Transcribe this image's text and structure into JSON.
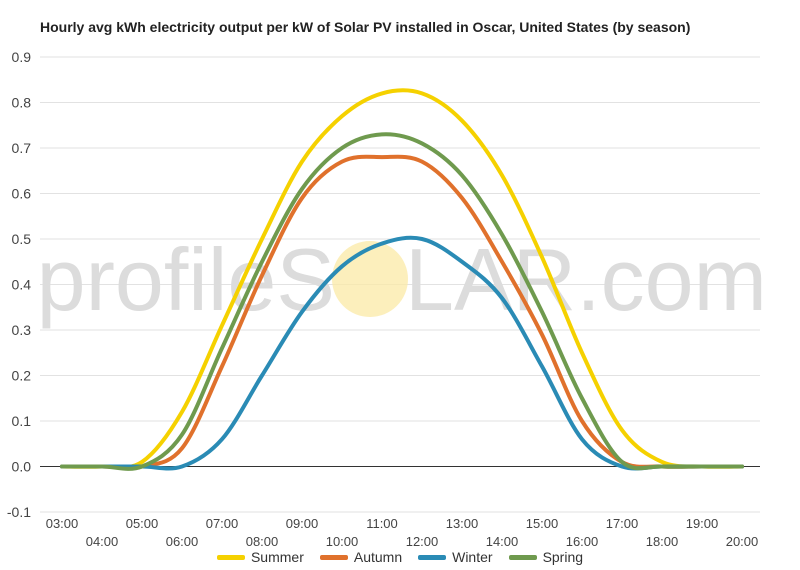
{
  "chart_data": {
    "type": "line",
    "title": "Hourly avg kWh electricity output per kW of Solar PV installed in Oscar, United States (by season)",
    "watermark": {
      "left": "profileS",
      "right": "LAR.com"
    },
    "xlabel": "",
    "ylabel": "",
    "ylim": [
      -0.1,
      0.9
    ],
    "yticks": [
      "-0.1",
      "0.0",
      "0.1",
      "0.2",
      "0.3",
      "0.4",
      "0.5",
      "0.6",
      "0.7",
      "0.8",
      "0.9"
    ],
    "categories": [
      "03:00",
      "04:00",
      "05:00",
      "06:00",
      "07:00",
      "08:00",
      "09:00",
      "10:00",
      "11:00",
      "12:00",
      "13:00",
      "14:00",
      "15:00",
      "16:00",
      "17:00",
      "18:00",
      "19:00",
      "20:00"
    ],
    "grid": true,
    "legend_position": "bottom",
    "series": [
      {
        "name": "Summer",
        "color": "#f5d100",
        "values": [
          0.0,
          0.0,
          0.01,
          0.12,
          0.31,
          0.5,
          0.67,
          0.77,
          0.82,
          0.82,
          0.76,
          0.64,
          0.46,
          0.25,
          0.08,
          0.01,
          0.0,
          0.0
        ]
      },
      {
        "name": "Autumn",
        "color": "#e0712c",
        "values": [
          0.0,
          0.0,
          0.0,
          0.04,
          0.22,
          0.42,
          0.59,
          0.67,
          0.68,
          0.67,
          0.59,
          0.45,
          0.29,
          0.1,
          0.01,
          0.0,
          0.0,
          0.0
        ]
      },
      {
        "name": "Winter",
        "color": "#2a8bb5",
        "values": [
          0.0,
          0.0,
          0.0,
          0.0,
          0.06,
          0.2,
          0.34,
          0.44,
          0.49,
          0.5,
          0.45,
          0.37,
          0.22,
          0.06,
          0.0,
          0.0,
          0.0,
          0.0
        ]
      },
      {
        "name": "Spring",
        "color": "#6f9a4e",
        "values": [
          0.0,
          0.0,
          0.0,
          0.07,
          0.26,
          0.45,
          0.61,
          0.7,
          0.73,
          0.71,
          0.64,
          0.51,
          0.34,
          0.15,
          0.01,
          0.0,
          0.0,
          0.0
        ]
      }
    ]
  }
}
